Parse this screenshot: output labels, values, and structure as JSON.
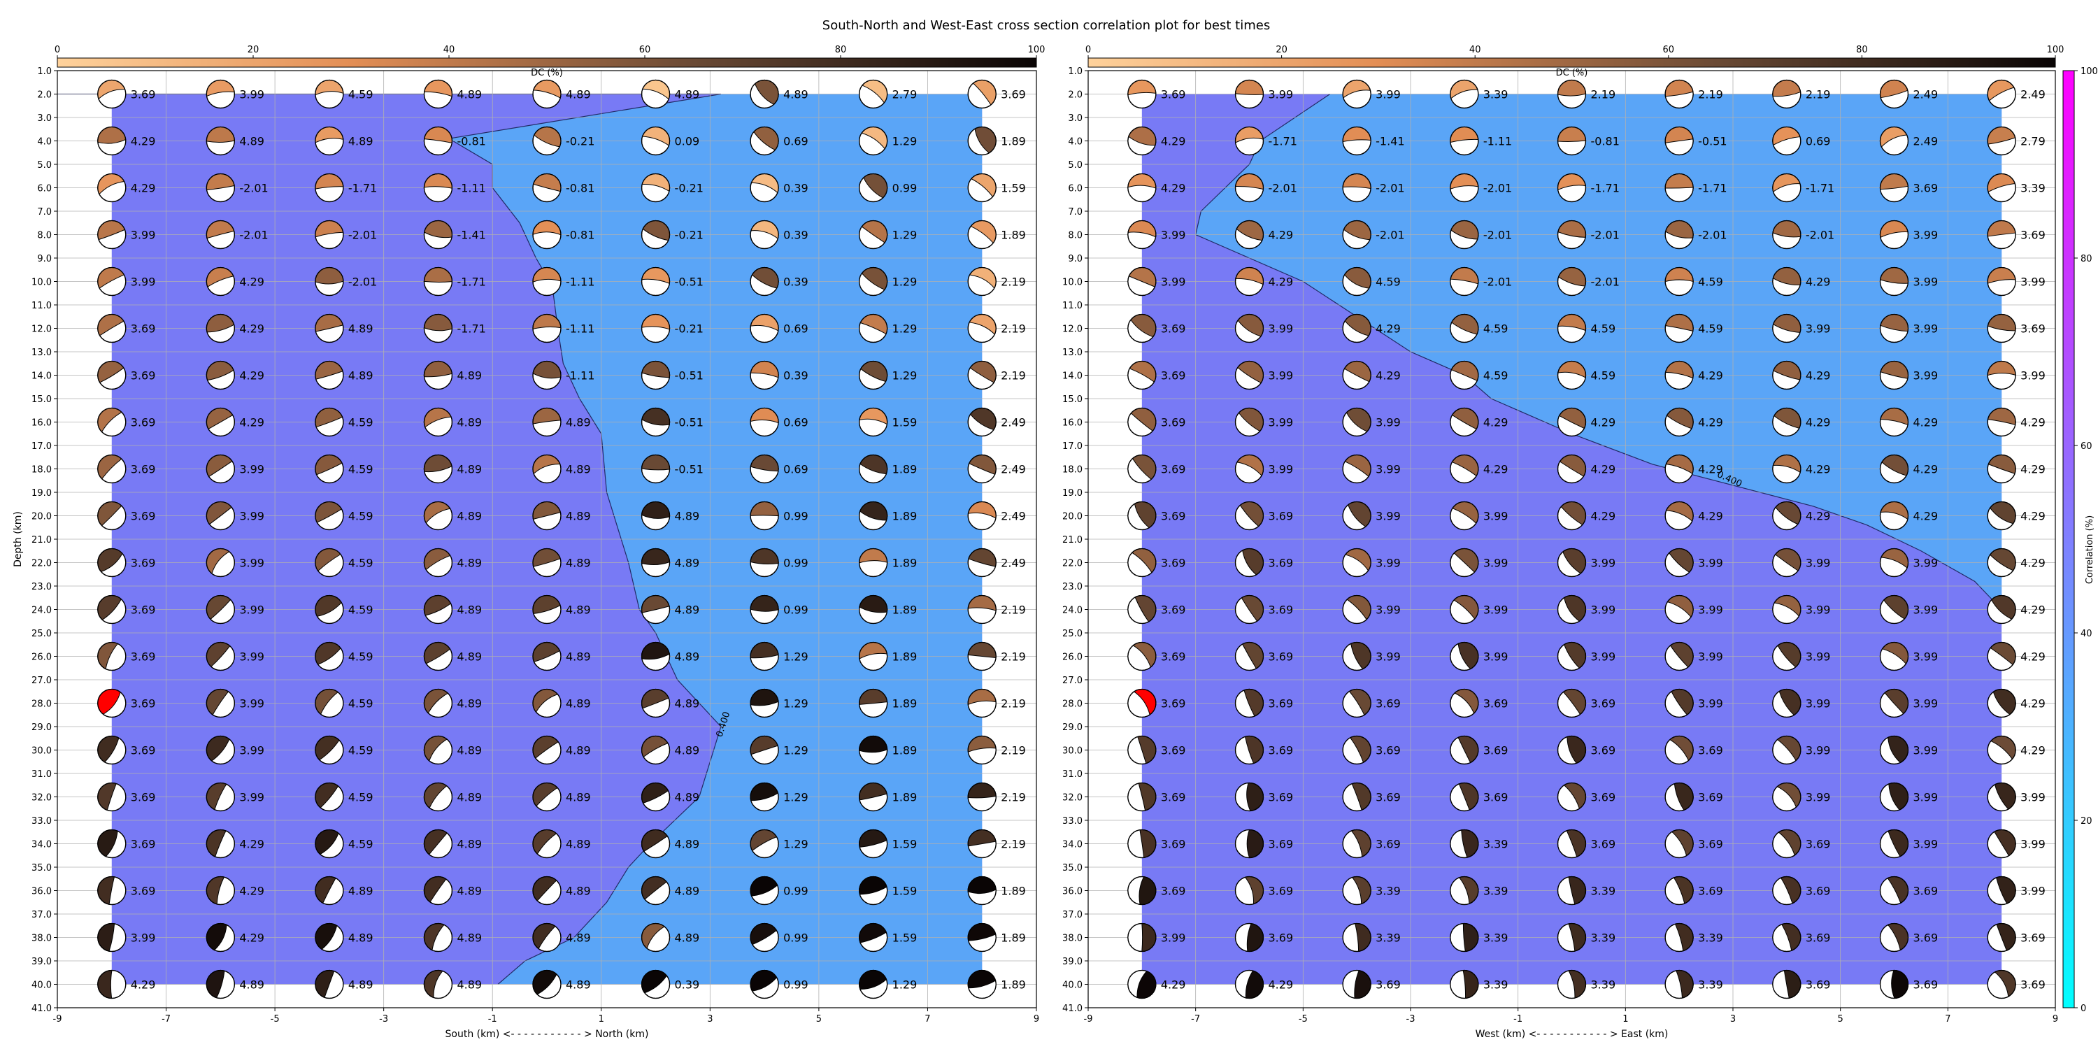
{
  "title": "South-North and West-East cross section correlation plot for best times",
  "colorbar_top": {
    "label": "DC (%)",
    "ticks": [
      0,
      20,
      40,
      60,
      80,
      100
    ],
    "colors": [
      "#ffd29b",
      "#e38e55",
      "#6a4a35",
      "#0a0505"
    ]
  },
  "colorbar_right": {
    "label": "Correlation (%)",
    "ticks": [
      0,
      20,
      40,
      60,
      80,
      100
    ],
    "colors": [
      "#00ffff",
      "#ff00ff"
    ]
  },
  "fill_low_color": "#787af5",
  "fill_high_color": "#5aa5f7",
  "highlight_color": "#ff0000",
  "chart_data": [
    {
      "type": "scatter",
      "xlabel": "South (km) <- - - - - - - - - - - > North (km)",
      "ylabel": "Depth (km)",
      "xlim": [
        -9,
        9
      ],
      "ylim": [
        41,
        1
      ],
      "xticks": [
        "-9",
        "-7",
        "-5",
        "-3",
        "-1",
        "1",
        "3",
        "5",
        "7",
        "9"
      ],
      "yticks": [
        "1.0",
        "2.0",
        "3.0",
        "4.0",
        "5.0",
        "6.0",
        "7.0",
        "8.0",
        "9.0",
        "10.0",
        "11.0",
        "12.0",
        "13.0",
        "14.0",
        "15.0",
        "16.0",
        "17.0",
        "18.0",
        "19.0",
        "20.0",
        "21.0",
        "22.0",
        "23.0",
        "24.0",
        "25.0",
        "26.0",
        "27.0",
        "28.0",
        "29.0",
        "30.0",
        "31.0",
        "32.0",
        "33.0",
        "34.0",
        "35.0",
        "36.0",
        "37.0",
        "38.0",
        "39.0",
        "40.0",
        "41.0"
      ],
      "x": [
        -8,
        -6,
        -4,
        -2,
        0,
        2,
        4,
        6,
        8
      ],
      "depths": [
        2,
        4,
        6,
        8,
        10,
        12,
        14,
        16,
        18,
        20,
        22,
        24,
        26,
        28,
        30,
        32,
        34,
        36,
        38,
        40
      ],
      "contour_label": "0.400",
      "contour": [
        [
          -9,
          2
        ],
        [
          3.2,
          2
        ],
        [
          -1.8,
          3.9
        ],
        [
          -1,
          5
        ],
        [
          -1,
          6
        ],
        [
          -0.5,
          7.5
        ],
        [
          -0.2,
          9
        ],
        [
          0.1,
          10.2
        ],
        [
          0.2,
          12
        ],
        [
          0.3,
          13.5
        ],
        [
          0.6,
          15
        ],
        [
          1,
          16.5
        ],
        [
          1.1,
          19
        ],
        [
          1.5,
          22
        ],
        [
          1.7,
          24
        ],
        [
          2,
          25
        ],
        [
          2.4,
          27
        ],
        [
          3.2,
          29
        ],
        [
          2.8,
          32
        ],
        [
          1.9,
          34
        ],
        [
          1.5,
          35
        ],
        [
          1.1,
          36.5
        ],
        [
          0.5,
          38
        ],
        [
          -0.4,
          39
        ],
        [
          -0.9,
          40
        ]
      ],
      "highlight": [
        -8,
        28
      ],
      "labels": [
        [
          "3.69",
          "3.99",
          "4.59",
          "4.89",
          "4.89",
          "4.89",
          "4.89",
          "2.79",
          "3.69"
        ],
        [
          "4.29",
          "4.89",
          "4.89",
          "-0.81",
          "-0.21",
          "0.09",
          "0.69",
          "1.29",
          "1.89"
        ],
        [
          "4.29",
          "-2.01",
          "-1.71",
          "-1.11",
          "-0.81",
          "-0.21",
          "0.39",
          "0.99",
          "1.59"
        ],
        [
          "3.99",
          "-2.01",
          "-2.01",
          "-1.41",
          "-0.81",
          "-0.21",
          "0.39",
          "1.29",
          "1.89"
        ],
        [
          "3.99",
          "4.29",
          "-2.01",
          "-1.71",
          "-1.11",
          "-0.51",
          "0.39",
          "1.29",
          "2.19"
        ],
        [
          "3.69",
          "4.29",
          "4.89",
          "-1.71",
          "-1.11",
          "-0.21",
          "0.69",
          "1.29",
          "2.19"
        ],
        [
          "3.69",
          "4.29",
          "4.89",
          "4.89",
          "-1.11",
          "-0.51",
          "0.39",
          "1.29",
          "2.19"
        ],
        [
          "3.69",
          "4.29",
          "4.59",
          "4.89",
          "4.89",
          "-0.51",
          "0.69",
          "1.59",
          "2.49"
        ],
        [
          "3.69",
          "3.99",
          "4.59",
          "4.89",
          "4.89",
          "-0.51",
          "0.69",
          "1.89",
          "2.49"
        ],
        [
          "3.69",
          "3.99",
          "4.59",
          "4.89",
          "4.89",
          "4.89",
          "0.99",
          "1.89",
          "2.49"
        ],
        [
          "3.69",
          "3.99",
          "4.59",
          "4.89",
          "4.89",
          "4.89",
          "0.99",
          "1.89",
          "2.49"
        ],
        [
          "3.69",
          "3.99",
          "4.59",
          "4.89",
          "4.89",
          "4.89",
          "0.99",
          "1.89",
          "2.19"
        ],
        [
          "3.69",
          "3.99",
          "4.59",
          "4.89",
          "4.89",
          "4.89",
          "1.29",
          "1.89",
          "2.19"
        ],
        [
          "3.69",
          "3.99",
          "4.59",
          "4.89",
          "4.89",
          "4.89",
          "1.29",
          "1.89",
          "2.19"
        ],
        [
          "3.69",
          "3.99",
          "4.59",
          "4.89",
          "4.89",
          "4.89",
          "1.29",
          "1.89",
          "2.19"
        ],
        [
          "3.69",
          "3.99",
          "4.59",
          "4.89",
          "4.89",
          "4.89",
          "1.29",
          "1.89",
          "2.19"
        ],
        [
          "3.69",
          "4.29",
          "4.59",
          "4.89",
          "4.89",
          "4.89",
          "1.29",
          "1.59",
          "2.19"
        ],
        [
          "3.69",
          "4.29",
          "4.89",
          "4.89",
          "4.89",
          "4.89",
          "0.99",
          "1.59",
          "1.89"
        ],
        [
          "3.99",
          "4.29",
          "4.89",
          "4.89",
          "4.89",
          "4.89",
          "0.99",
          "1.59",
          "1.89"
        ],
        [
          "4.29",
          "4.89",
          "4.89",
          "4.89",
          "4.89",
          "0.39",
          "0.99",
          "1.29",
          "1.89"
        ]
      ]
    },
    {
      "type": "scatter",
      "xlabel": "West (km) <- - - - - - - - - - - > East (km)",
      "ylabel": "",
      "xlim": [
        -9,
        9
      ],
      "ylim": [
        41,
        1
      ],
      "xticks": [
        "-9",
        "-7",
        "-5",
        "-3",
        "-1",
        "1",
        "3",
        "5",
        "7",
        "9"
      ],
      "yticks": [
        "1.0",
        "2.0",
        "3.0",
        "4.0",
        "5.0",
        "6.0",
        "7.0",
        "8.0",
        "9.0",
        "10.0",
        "11.0",
        "12.0",
        "13.0",
        "14.0",
        "15.0",
        "16.0",
        "17.0",
        "18.0",
        "19.0",
        "20.0",
        "21.0",
        "22.0",
        "23.0",
        "24.0",
        "25.0",
        "26.0",
        "27.0",
        "28.0",
        "29.0",
        "30.0",
        "31.0",
        "32.0",
        "33.0",
        "34.0",
        "35.0",
        "36.0",
        "37.0",
        "38.0",
        "39.0",
        "40.0",
        "41.0"
      ],
      "x": [
        -8,
        -6,
        -4,
        -2,
        0,
        2,
        4,
        6,
        8
      ],
      "depths": [
        2,
        4,
        6,
        8,
        10,
        12,
        14,
        16,
        18,
        20,
        22,
        24,
        26,
        28,
        30,
        32,
        34,
        36,
        38,
        40
      ],
      "contour_label": "0.400",
      "contour": [
        [
          -4.5,
          2
        ],
        [
          -5.8,
          4
        ],
        [
          -6,
          5
        ],
        [
          -6.9,
          7
        ],
        [
          -7,
          8
        ],
        [
          -6,
          9
        ],
        [
          -5,
          10
        ],
        [
          -4,
          11.5
        ],
        [
          -3,
          13
        ],
        [
          -2,
          14
        ],
        [
          -1.5,
          15
        ],
        [
          0,
          16.5
        ],
        [
          1.5,
          17.8
        ],
        [
          3,
          18.7
        ],
        [
          4.5,
          19.6
        ],
        [
          5.5,
          20.4
        ],
        [
          6.5,
          21.5
        ],
        [
          7.5,
          22.8
        ],
        [
          8,
          24
        ]
      ],
      "highlight": [
        -8,
        28
      ],
      "labels": [
        [
          "3.69",
          "3.99",
          "3.99",
          "3.39",
          "2.19",
          "2.19",
          "2.19",
          "2.49",
          "2.49"
        ],
        [
          "4.29",
          "-1.71",
          "-1.41",
          "-1.11",
          "-0.81",
          "-0.51",
          "0.69",
          "2.49",
          "2.79"
        ],
        [
          "4.29",
          "-2.01",
          "-2.01",
          "-2.01",
          "-1.71",
          "-1.71",
          "-1.71",
          "3.69",
          "3.39"
        ],
        [
          "3.99",
          "4.29",
          "-2.01",
          "-2.01",
          "-2.01",
          "-2.01",
          "-2.01",
          "3.99",
          "3.69"
        ],
        [
          "3.99",
          "4.29",
          "4.59",
          "-2.01",
          "-2.01",
          "4.59",
          "4.29",
          "3.99",
          "3.99"
        ],
        [
          "3.69",
          "3.99",
          "4.29",
          "4.59",
          "4.59",
          "4.59",
          "3.99",
          "3.99",
          "3.69"
        ],
        [
          "3.69",
          "3.99",
          "4.29",
          "4.59",
          "4.59",
          "4.29",
          "4.29",
          "3.99",
          "3.99"
        ],
        [
          "3.69",
          "3.99",
          "3.99",
          "4.29",
          "4.29",
          "4.29",
          "4.29",
          "4.29",
          "4.29"
        ],
        [
          "3.69",
          "3.99",
          "3.99",
          "4.29",
          "4.29",
          "4.29",
          "4.29",
          "4.29",
          "4.29"
        ],
        [
          "3.69",
          "3.69",
          "3.99",
          "3.99",
          "4.29",
          "4.29",
          "4.29",
          "4.29",
          "4.29"
        ],
        [
          "3.69",
          "3.69",
          "3.99",
          "3.99",
          "3.99",
          "3.99",
          "3.99",
          "3.99",
          "4.29"
        ],
        [
          "3.69",
          "3.69",
          "3.99",
          "3.99",
          "3.99",
          "3.99",
          "3.99",
          "3.99",
          "4.29"
        ],
        [
          "3.69",
          "3.69",
          "3.99",
          "3.99",
          "3.99",
          "3.99",
          "3.99",
          "3.99",
          "4.29"
        ],
        [
          "3.69",
          "3.69",
          "3.69",
          "3.69",
          "3.69",
          "3.99",
          "3.99",
          "3.99",
          "4.29"
        ],
        [
          "3.69",
          "3.69",
          "3.69",
          "3.69",
          "3.69",
          "3.69",
          "3.99",
          "3.99",
          "4.29"
        ],
        [
          "3.69",
          "3.69",
          "3.69",
          "3.69",
          "3.69",
          "3.69",
          "3.99",
          "3.99",
          "3.99"
        ],
        [
          "3.69",
          "3.69",
          "3.69",
          "3.39",
          "3.69",
          "3.69",
          "3.69",
          "3.99",
          "3.99"
        ],
        [
          "3.69",
          "3.69",
          "3.39",
          "3.39",
          "3.39",
          "3.69",
          "3.69",
          "3.69",
          "3.99"
        ],
        [
          "3.99",
          "3.69",
          "3.39",
          "3.39",
          "3.39",
          "3.39",
          "3.69",
          "3.69",
          "3.69"
        ],
        [
          "4.29",
          "4.29",
          "3.69",
          "3.39",
          "3.39",
          "3.39",
          "3.69",
          "3.69",
          "3.69"
        ]
      ]
    }
  ]
}
